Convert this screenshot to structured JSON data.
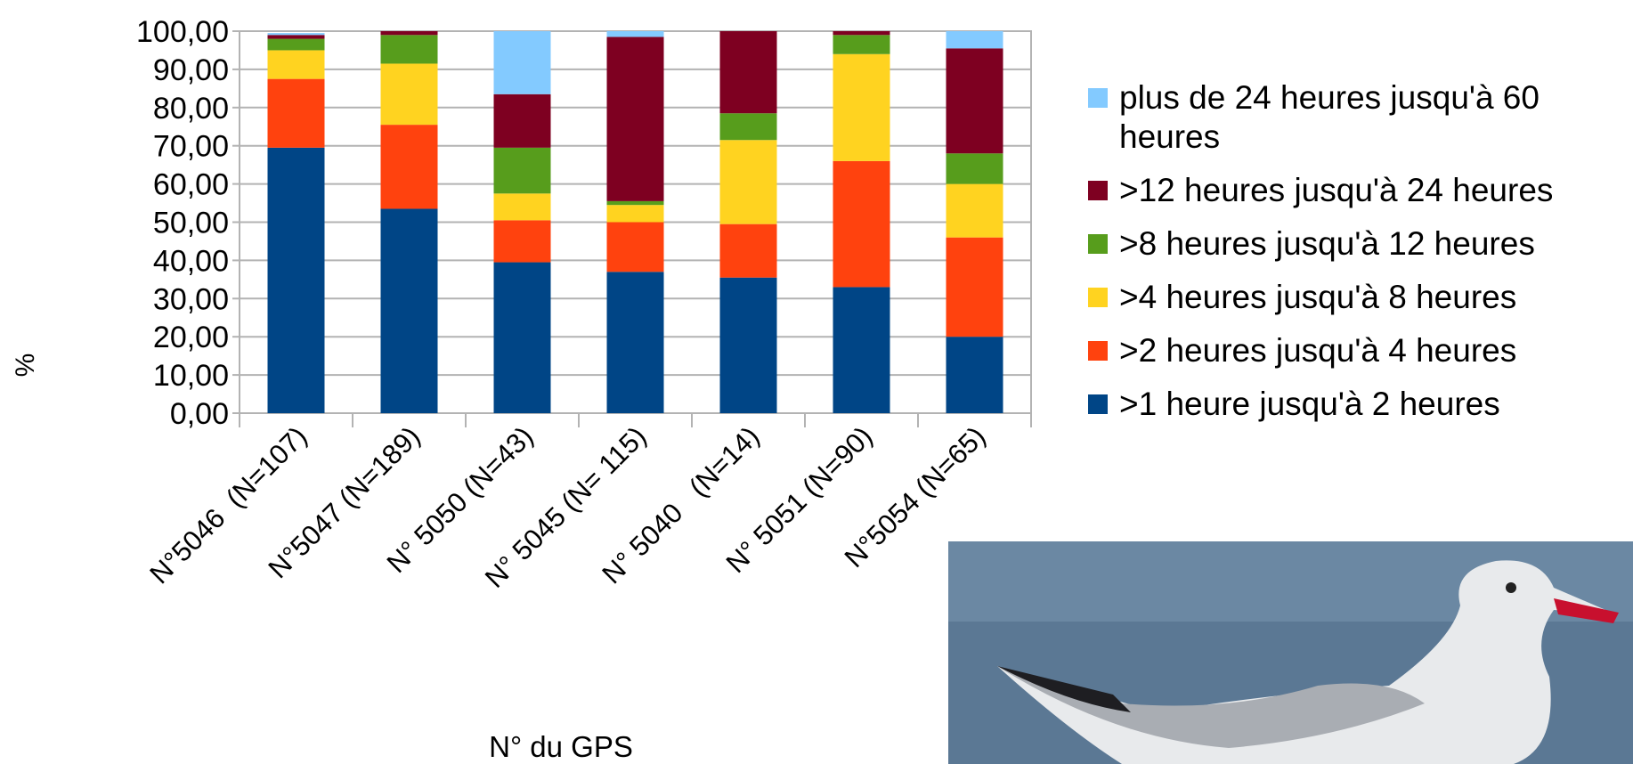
{
  "chart_data": {
    "type": "stacked-bar",
    "y_label": "%",
    "x_label": "N° du GPS",
    "categories": [
      "N°5046  (N=107)",
      "N°5047 (N=189)",
      "N° 5050 (N=43)",
      "N° 5045 (N= 115)",
      "N° 5040   (N=14)",
      "N° 5051 (N=90)",
      "N°5054 (N=65)"
    ],
    "series": [
      {
        "name": ">1 heure jusqu'à 2 heures",
        "color": "#004586",
        "values": [
          69.5,
          53.5,
          39.5,
          37,
          35.5,
          33,
          20
        ]
      },
      {
        "name": ">2 heures jusqu'à 4 heures",
        "color": "#ff420e",
        "values": [
          18,
          22,
          11,
          13,
          14,
          33,
          26
        ]
      },
      {
        "name": ">4 heures jusqu'à 8 heures",
        "color": "#ffd320",
        "values": [
          7.5,
          16,
          7,
          4.5,
          22,
          28,
          14
        ]
      },
      {
        "name": ">8 heures jusqu'à 12 heures",
        "color": "#579d1c",
        "values": [
          3,
          7.5,
          12,
          1,
          7,
          5,
          8
        ]
      },
      {
        "name": ">12 heures jusqu'à 24 heures",
        "color": "#7e0021",
        "values": [
          1,
          1,
          14,
          43,
          21.5,
          1,
          27.5
        ]
      },
      {
        "name": "plus de 24 heures jusqu'à 60 heures",
        "color": "#83caff",
        "values": [
          0.5,
          0,
          16.5,
          1.5,
          0,
          0,
          4.5
        ]
      }
    ],
    "ylim": [
      0,
      100
    ],
    "yticks": [
      {
        "value": 0,
        "label": "0,00"
      },
      {
        "value": 10,
        "label": "10,00"
      },
      {
        "value": 20,
        "label": "20,00"
      },
      {
        "value": 30,
        "label": "30,00"
      },
      {
        "value": 40,
        "label": "40,00"
      },
      {
        "value": 50,
        "label": "50,00"
      },
      {
        "value": 60,
        "label": "60,00"
      },
      {
        "value": 70,
        "label": "70,00"
      },
      {
        "value": 80,
        "label": "80,00"
      },
      {
        "value": 90,
        "label": "90,00"
      },
      {
        "value": 100,
        "label": "100,00"
      }
    ],
    "grid": true
  }
}
